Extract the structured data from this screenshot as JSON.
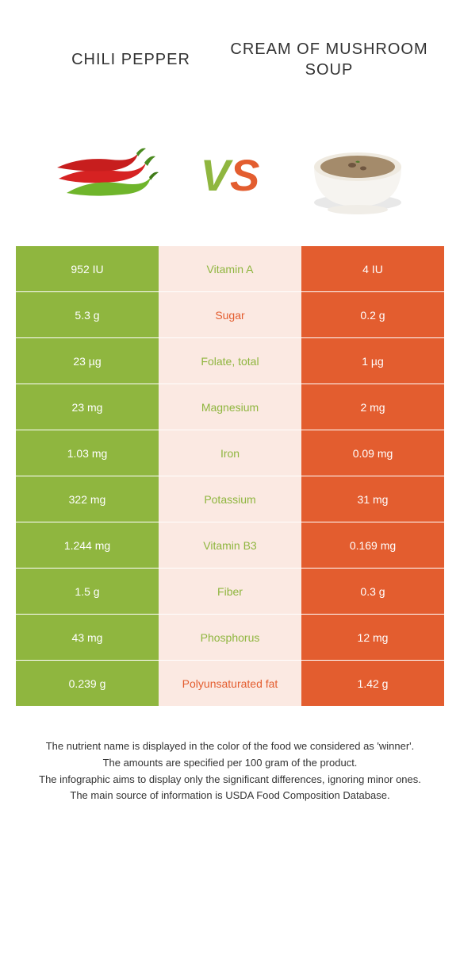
{
  "header": {
    "left_title": "Chili pepper",
    "right_title": "Cream of mushroom soup"
  },
  "vs": {
    "v": "V",
    "s": "S"
  },
  "colors": {
    "left": "#8fb63f",
    "right": "#e35d2f",
    "mid_bg": "#fbe9e2",
    "text_dark": "#333333"
  },
  "nutrients": [
    {
      "label": "Vitamin A",
      "left": "952 IU",
      "right": "4 IU",
      "winner": "left"
    },
    {
      "label": "Sugar",
      "left": "5.3 g",
      "right": "0.2 g",
      "winner": "right"
    },
    {
      "label": "Folate, total",
      "left": "23 µg",
      "right": "1 µg",
      "winner": "left"
    },
    {
      "label": "Magnesium",
      "left": "23 mg",
      "right": "2 mg",
      "winner": "left"
    },
    {
      "label": "Iron",
      "left": "1.03 mg",
      "right": "0.09 mg",
      "winner": "left"
    },
    {
      "label": "Potassium",
      "left": "322 mg",
      "right": "31 mg",
      "winner": "left"
    },
    {
      "label": "Vitamin B3",
      "left": "1.244 mg",
      "right": "0.169 mg",
      "winner": "left"
    },
    {
      "label": "Fiber",
      "left": "1.5 g",
      "right": "0.3 g",
      "winner": "left"
    },
    {
      "label": "Phosphorus",
      "left": "43 mg",
      "right": "12 mg",
      "winner": "left"
    },
    {
      "label": "Polyunsaturated fat",
      "left": "0.239 g",
      "right": "1.42 g",
      "winner": "right"
    }
  ],
  "footnotes": [
    "The nutrient name is displayed in the color of the food we considered as 'winner'.",
    "The amounts are specified per 100 gram of the product.",
    "The infographic aims to display only the significant differences, ignoring minor ones.",
    "The main source of information is USDA Food Composition Database."
  ]
}
